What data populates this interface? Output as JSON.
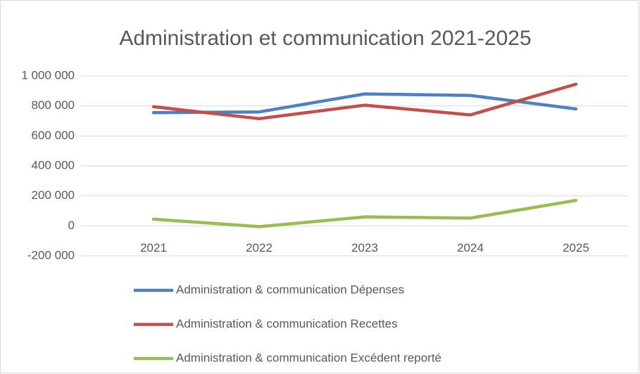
{
  "chart_data": {
    "type": "line",
    "title": "Administration et communication 2021-2025",
    "categories": [
      "2021",
      "2022",
      "2023",
      "2024",
      "2025"
    ],
    "series": [
      {
        "name": "Administration & communication Dépenses",
        "color": "#4f81bd",
        "values": [
          755000,
          760000,
          880000,
          870000,
          780000
        ]
      },
      {
        "name": "Administration & communication Recettes",
        "color": "#c0504d",
        "values": [
          795000,
          715000,
          805000,
          740000,
          945000
        ]
      },
      {
        "name": "Administration & communication Excédent reporté",
        "color": "#9bbb59",
        "values": [
          45000,
          -5000,
          60000,
          52000,
          170000
        ]
      }
    ],
    "ylim": [
      -200000,
      1000000
    ],
    "yticks": [
      {
        "value": -200000,
        "label": "-200 000"
      },
      0,
      {
        "value": 200000,
        "label": "200 000"
      },
      {
        "value": 400000,
        "label": "400 000"
      },
      {
        "value": 600000,
        "label": "600 000"
      },
      {
        "value": 800000,
        "label": "800 000"
      },
      {
        "value": 1000000,
        "label": "1 000 000"
      }
    ],
    "grid": true,
    "legend": "bottom"
  }
}
